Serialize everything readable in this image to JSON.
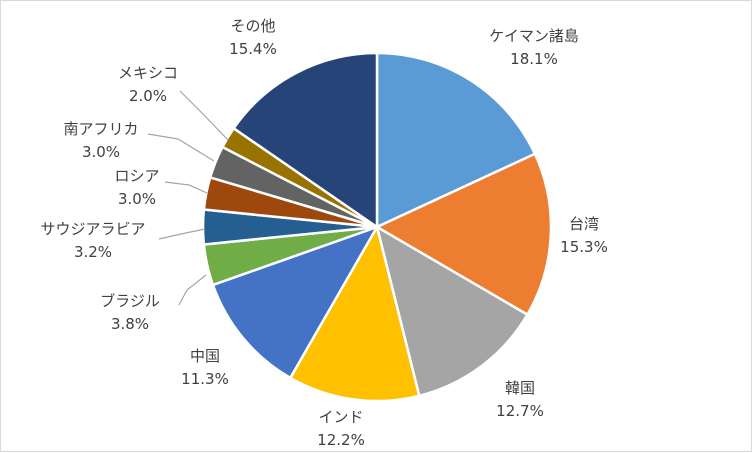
{
  "chart_data": {
    "type": "pie",
    "start": "top",
    "direction": "clockwise",
    "slices": [
      {
        "label": "ケイマン諸島",
        "value": 18.1,
        "value_label": "18.1%",
        "color": "#5b9bd5"
      },
      {
        "label": "台湾",
        "value": 15.3,
        "value_label": "15.3%",
        "color": "#ed7d31"
      },
      {
        "label": "韓国",
        "value": 12.7,
        "value_label": "12.7%",
        "color": "#a5a5a5"
      },
      {
        "label": "インド",
        "value": 12.2,
        "value_label": "12.2%",
        "color": "#ffc000"
      },
      {
        "label": "中国",
        "value": 11.3,
        "value_label": "11.3%",
        "color": "#4472c4"
      },
      {
        "label": "ブラジル",
        "value": 3.8,
        "value_label": "3.8%",
        "color": "#70ad47"
      },
      {
        "label": "サウジアラビア",
        "value": 3.2,
        "value_label": "3.2%",
        "color": "#255e91"
      },
      {
        "label": "ロシア",
        "value": 3.0,
        "value_label": "3.0%",
        "color": "#9e480e"
      },
      {
        "label": "南アフリカ",
        "value": 3.0,
        "value_label": "3.0%",
        "color": "#636363"
      },
      {
        "label": "メキシコ",
        "value": 2.0,
        "value_label": "2.0%",
        "color": "#997300"
      },
      {
        "label": "その他",
        "value": 15.4,
        "value_label": "15.4%",
        "color": "#264478"
      }
    ]
  }
}
